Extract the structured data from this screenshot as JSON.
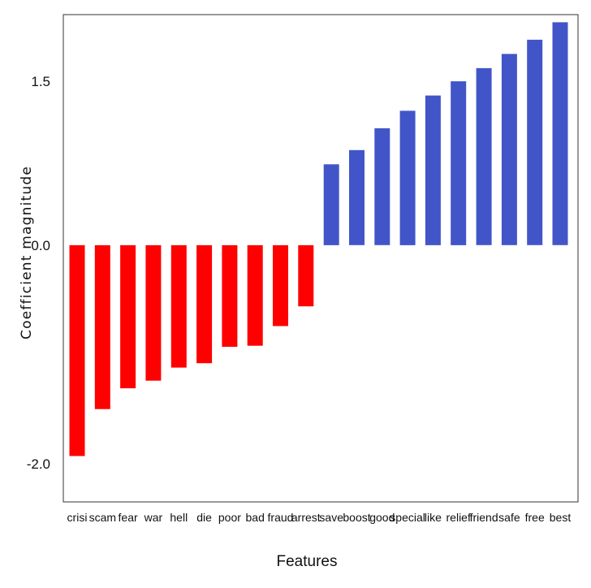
{
  "chart_data": {
    "type": "bar",
    "title": "",
    "xlabel": "Features",
    "ylabel": "Coefficient magnitude",
    "categories": [
      "crisi",
      "scam",
      "fear",
      "war",
      "hell",
      "die",
      "poor",
      "bad",
      "fraud",
      "arrest",
      "save",
      "boost",
      "good",
      "special",
      "like",
      "relief",
      "friend",
      "safe",
      "free",
      "best"
    ],
    "values": [
      -1.93,
      -1.5,
      -1.31,
      -1.24,
      -1.12,
      -1.08,
      -0.93,
      -0.92,
      -0.74,
      -0.56,
      0.74,
      0.87,
      1.07,
      1.23,
      1.37,
      1.5,
      1.62,
      1.75,
      1.88,
      2.04
    ],
    "yticks": [
      1.5,
      0.0,
      -2.0
    ],
    "ytick_labels": [
      "1.5",
      "0.0",
      "-2.0"
    ],
    "ylim": [
      -2.35,
      2.11
    ],
    "grid": false,
    "legend": "none",
    "colors": {
      "negative": "#ff0000",
      "positive": "#4255c8"
    }
  }
}
